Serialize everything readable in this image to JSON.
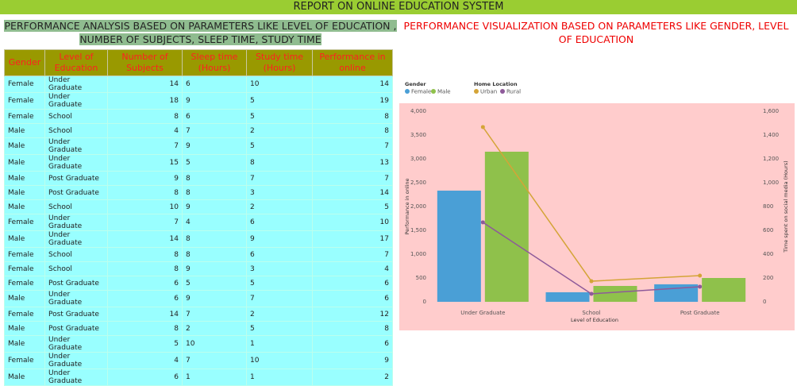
{
  "header": {
    "title": "REPORT ON ONLINE EDUCATION SYSTEM"
  },
  "table": {
    "title": "PERFORMANCE ANALYSIS BASED ON PARAMETERS LIKE LEVEL OF EDUCATION , NUMBER OF SUBJECTS, SLEEP TIME, STUDY TIME",
    "columns": [
      "Gender",
      "Level of Education",
      "Number of Subjects",
      "Sleep time (Hours)",
      "Study time (Hours)",
      "Performance in online"
    ],
    "rows": [
      [
        "Female",
        "Under Graduate",
        14,
        6,
        10,
        14
      ],
      [
        "Female",
        "Under Graduate",
        18,
        9,
        5,
        19
      ],
      [
        "Female",
        "School",
        8,
        6,
        5,
        8
      ],
      [
        "Male",
        "School",
        4,
        7,
        2,
        8
      ],
      [
        "Male",
        "Under Graduate",
        7,
        9,
        5,
        7
      ],
      [
        "Male",
        "Under Graduate",
        15,
        5,
        8,
        13
      ],
      [
        "Male",
        "Post Graduate",
        9,
        8,
        7,
        7
      ],
      [
        "Male",
        "Post Graduate",
        8,
        8,
        3,
        14
      ],
      [
        "Male",
        "School",
        10,
        9,
        2,
        5
      ],
      [
        "Female",
        "Under Graduate",
        7,
        4,
        6,
        10
      ],
      [
        "Male",
        "Under Graduate",
        14,
        8,
        9,
        17
      ],
      [
        "Female",
        "School",
        8,
        8,
        6,
        7
      ],
      [
        "Female",
        "School",
        8,
        9,
        3,
        4
      ],
      [
        "Female",
        "Post Graduate",
        6,
        5,
        5,
        6
      ],
      [
        "Male",
        "Under Graduate",
        6,
        9,
        7,
        6
      ],
      [
        "Female",
        "Post Graduate",
        14,
        7,
        2,
        12
      ],
      [
        "Male",
        "Post Graduate",
        8,
        2,
        5,
        8
      ],
      [
        "Male",
        "Under Graduate",
        5,
        10,
        1,
        6
      ],
      [
        "Female",
        "Under Graduate",
        4,
        7,
        10,
        9
      ],
      [
        "Male",
        "Under Graduate",
        6,
        1,
        1,
        2
      ]
    ]
  },
  "chart_data": {
    "type": "bar",
    "title": "PERFORMANCE VISUALIZATION BASED ON PARAMETERS LIKE  GENDER, LEVEL OF EDUCATION",
    "legend_titles": [
      "Gender",
      "Home Location"
    ],
    "categories": [
      "Under Graduate",
      "School",
      "Post Graduate"
    ],
    "x_label": "Level of Education",
    "y_label": "Performance in online",
    "y2_label": "Time spent on social media (Hours)",
    "series": [
      {
        "name": "Female",
        "color": "#4a9fd6",
        "values": [
          2333,
          200,
          367
        ]
      },
      {
        "name": "Male",
        "color": "#8fc14b",
        "values": [
          3150,
          333,
          500
        ]
      },
      {
        "name": "Urban",
        "color": "#d4a437",
        "type": "line",
        "axis": "y2",
        "values": [
          1467,
          173,
          220
        ]
      },
      {
        "name": "Rural",
        "color": "#8e5a9a",
        "type": "line",
        "axis": "y2",
        "values": [
          667,
          67,
          127
        ]
      }
    ],
    "ylim": [
      0,
      4000
    ],
    "yticks": [
      0,
      500,
      {
        "value": 1000,
        "label": "1,000"
      },
      {
        "value": 1500,
        "label": "1,500"
      },
      {
        "value": 2000,
        "label": "2,000"
      },
      {
        "value": 2500,
        "label": "2,500"
      },
      {
        "value": 3000,
        "label": "3,000"
      },
      {
        "value": 3500,
        "label": "3,500"
      },
      {
        "value": 4000,
        "label": "4,000"
      }
    ],
    "y2lim": [
      0,
      1600
    ],
    "y2ticks": [
      0,
      200,
      400,
      600,
      800,
      {
        "value": 1000,
        "label": "1,000"
      },
      {
        "value": 1200,
        "label": "1,200"
      },
      {
        "value": 1400,
        "label": "1,400"
      },
      {
        "value": 1600,
        "label": "1,600"
      }
    ],
    "background": "#ffcccc"
  }
}
